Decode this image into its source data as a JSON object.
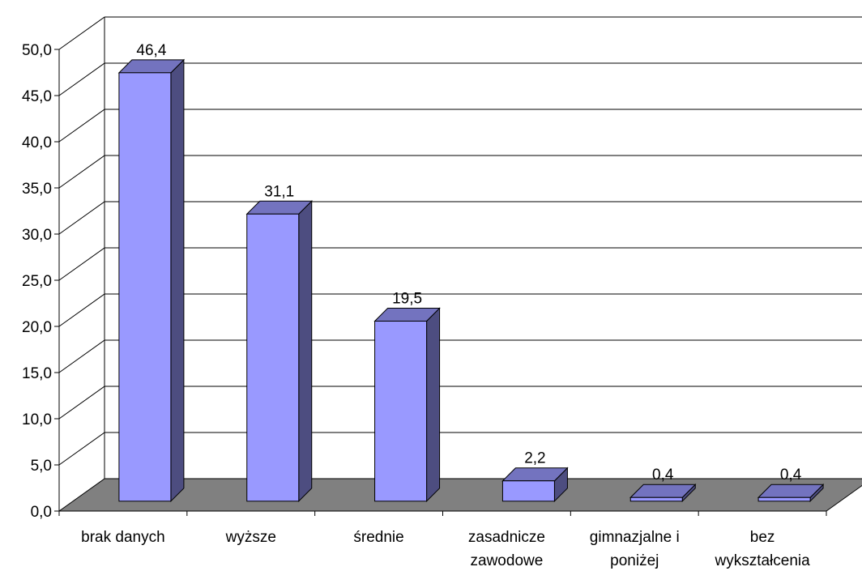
{
  "chart_data": {
    "type": "bar",
    "three_d": true,
    "categories": [
      [
        "brak danych"
      ],
      [
        "wyższe"
      ],
      [
        "średnie"
      ],
      [
        "zasadnicze",
        "zawodowe"
      ],
      [
        "gimnazjalne i",
        "poniżej"
      ],
      [
        "bez",
        "wykształcenia"
      ]
    ],
    "values": [
      46.4,
      31.1,
      19.5,
      2.2,
      0.4,
      0.4
    ],
    "value_labels": [
      "46,4",
      "31,1",
      "19,5",
      "2,2",
      "0,4",
      "0,4"
    ],
    "y_ticks": [
      "0,0",
      "5,0",
      "10,0",
      "15,0",
      "20,0",
      "25,0",
      "30,0",
      "35,0",
      "40,0",
      "45,0",
      "50,0"
    ],
    "ylim": [
      0,
      50
    ],
    "title": "",
    "xlabel": "",
    "ylabel": "",
    "grid": true,
    "legend": "none",
    "colors": {
      "bar_front": "#9999ff",
      "bar_side": "#4d4d80",
      "bar_top": "#7373bf",
      "floor": "#808080",
      "axis": "#000000",
      "grid": "#000000"
    }
  }
}
